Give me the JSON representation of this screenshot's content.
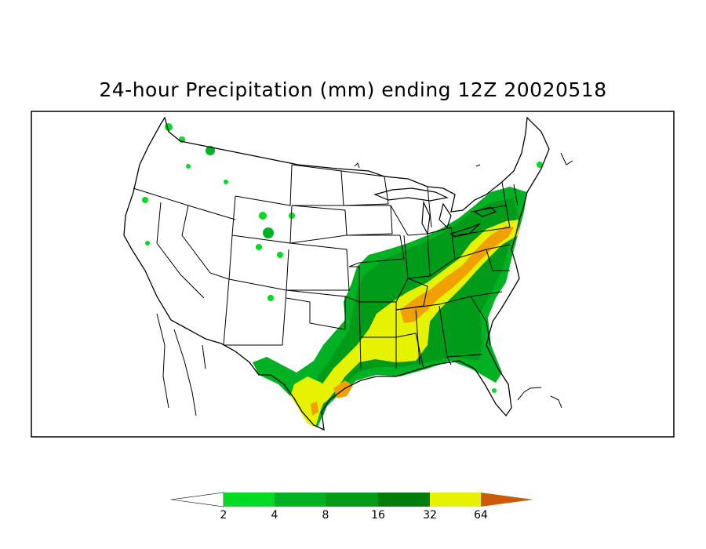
{
  "title": "24-hour Precipitation (mm) ending 12Z 20020518",
  "legend": {
    "labels": [
      "2",
      "4",
      "8",
      "16",
      "32",
      "64"
    ],
    "colors": {
      "below": "#ffffff",
      "2-4": "#00dc21",
      "4-8": "#00b223",
      "8-16": "#009b19",
      "16-32": "#007d0a",
      "32-64": "#e5f200",
      "64+": "#f0a000",
      "extreme": "#cb5a0b"
    }
  },
  "colors": {
    "border": "#000000",
    "background": "#ffffff"
  }
}
